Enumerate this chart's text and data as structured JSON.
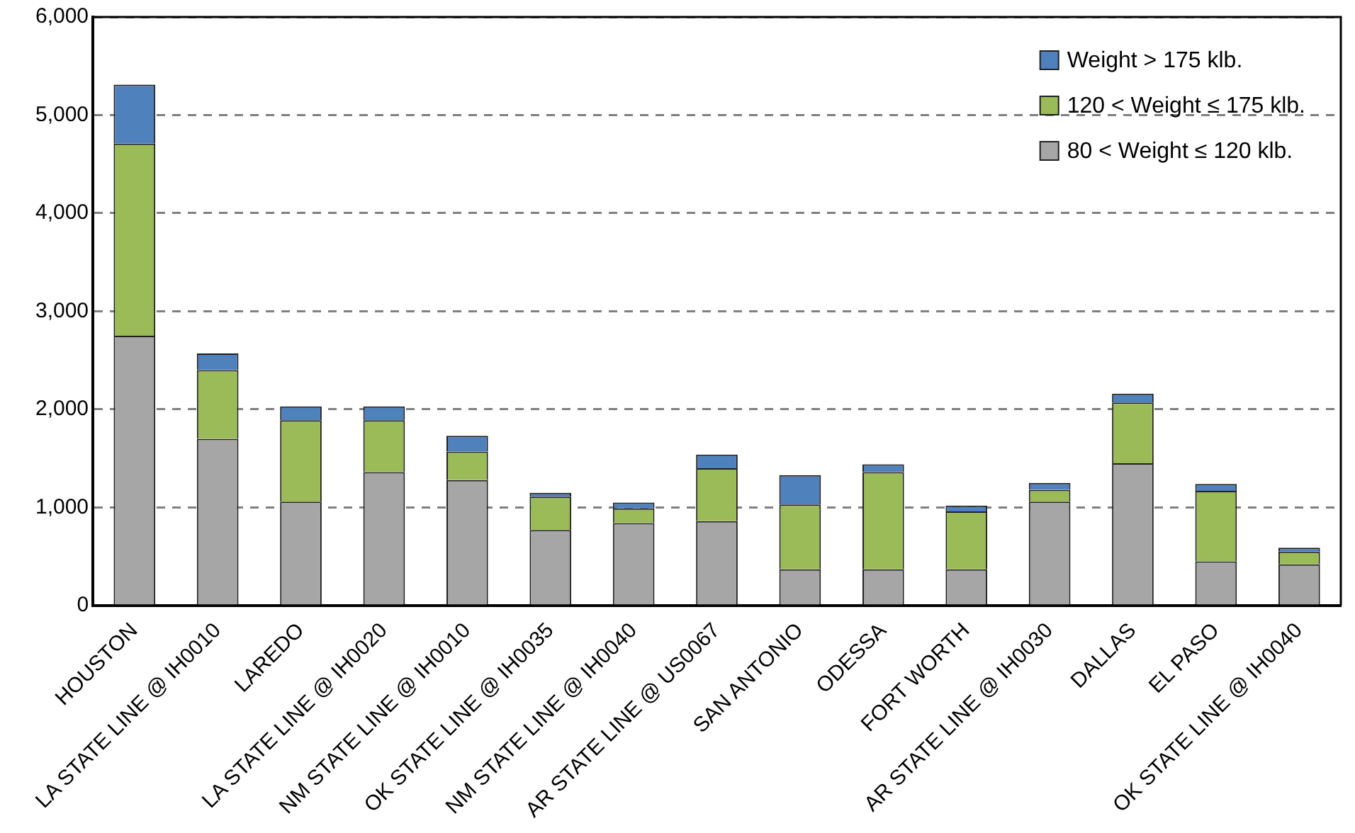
{
  "chart_data": {
    "type": "bar",
    "stacked": true,
    "categories": [
      "HOUSTON",
      "LA STATE LINE @ IH0010",
      "LAREDO",
      "LA STATE LINE @ IH0020",
      "NM STATE LINE @ IH0010",
      "OK STATE LINE @ IH0035",
      "NM STATE LINE @ IH0040",
      "AR STATE LINE @ US0067",
      "SAN ANTONIO",
      "ODESSA",
      "FORT WORTH",
      "AR STATE LINE @ IH0030",
      "DALLAS",
      "EL PASO",
      "OK STATE LINE @ IH0040"
    ],
    "series": [
      {
        "name": "80 < Weight ≤ 120 klb.",
        "color": "#a6a6a6",
        "values": [
          2750,
          1700,
          1060,
          1360,
          1280,
          770,
          840,
          860,
          370,
          370,
          370,
          1060,
          1450,
          450,
          420
        ]
      },
      {
        "name": "120 < Weight ≤ 175 klb.",
        "color": "#9bbb59",
        "values": [
          1960,
          700,
          830,
          530,
          290,
          340,
          150,
          540,
          660,
          990,
          590,
          120,
          620,
          720,
          130
        ]
      },
      {
        "name": "Weight > 175 klb.",
        "color": "#4f81bd",
        "values": [
          600,
          170,
          140,
          140,
          160,
          40,
          60,
          140,
          300,
          80,
          60,
          70,
          90,
          70,
          40
        ]
      }
    ],
    "ylim": [
      0,
      6000
    ],
    "yticks": [
      {
        "value": 0,
        "label": "0"
      },
      {
        "value": 1000,
        "label": "1,000"
      },
      {
        "value": 2000,
        "label": "2,000"
      },
      {
        "value": 3000,
        "label": "3,000"
      },
      {
        "value": 4000,
        "label": "4,000"
      },
      {
        "value": 5000,
        "label": "5,000"
      },
      {
        "value": 6000,
        "label": "6,000"
      }
    ],
    "grid": "y",
    "legend": "top right"
  }
}
